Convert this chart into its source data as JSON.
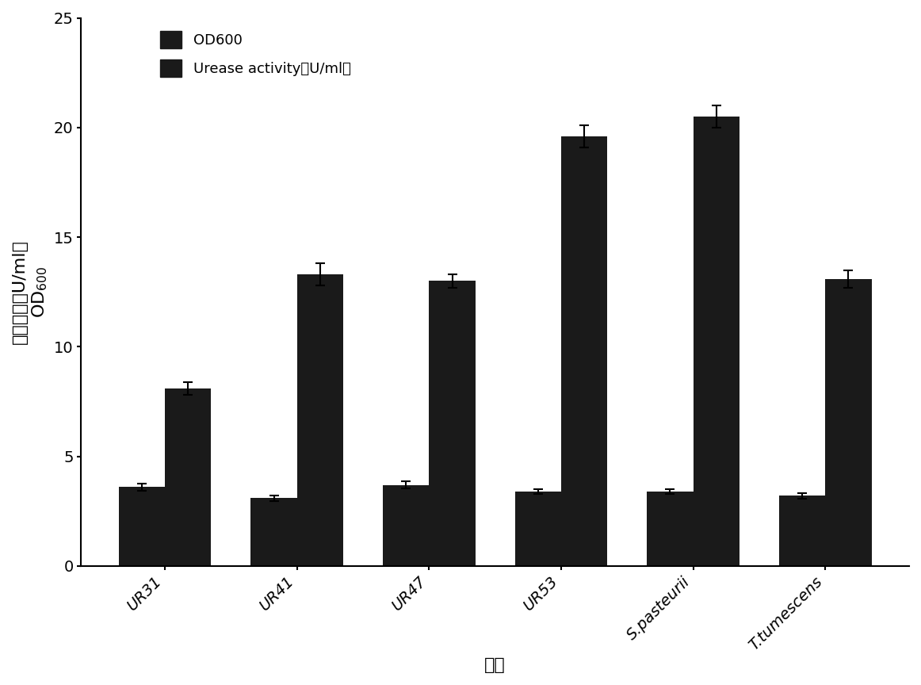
{
  "categories": [
    "UR31",
    "UR41",
    "UR47",
    "UR53",
    "S.pasteurii",
    "T.tumescens"
  ],
  "od600_values": [
    3.6,
    3.1,
    3.7,
    3.4,
    3.4,
    3.2
  ],
  "od600_errors": [
    0.15,
    0.12,
    0.15,
    0.12,
    0.12,
    0.12
  ],
  "urease_values": [
    8.1,
    13.3,
    13.0,
    19.6,
    20.5,
    13.1
  ],
  "urease_errors": [
    0.3,
    0.5,
    0.3,
    0.5,
    0.5,
    0.4
  ],
  "bar_color": "#1a1a1a",
  "bar_width": 0.35,
  "ylim": [
    0,
    25
  ],
  "yticks": [
    0,
    5,
    10,
    15,
    20,
    25
  ],
  "ylabel_line1": "脫酶活性（U/ml）",
  "ylabel_line2": "OD",
  "ylabel_subscript": "600",
  "xlabel_chinese": "菌株",
  "legend_od600": "OD600",
  "legend_urease": "Urease activity（U/ml）",
  "tick_fontsize": 14,
  "label_fontsize": 16,
  "legend_fontsize": 13
}
